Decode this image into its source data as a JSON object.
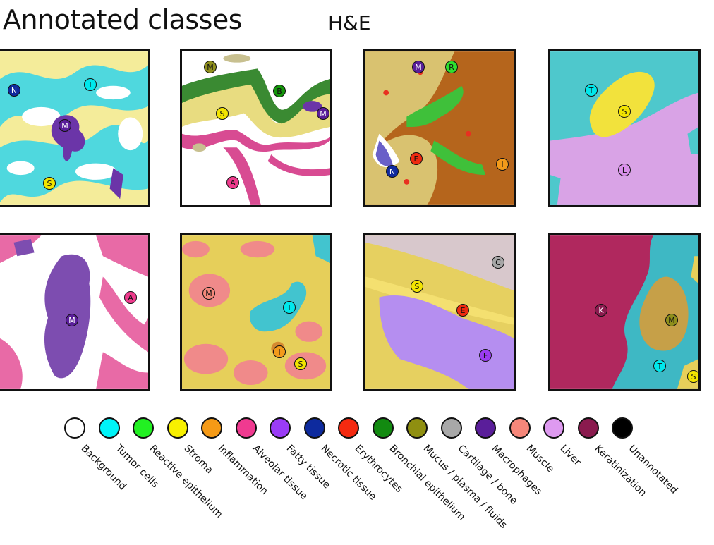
{
  "header": {
    "title": "Annotated classes",
    "stain": "H&E"
  },
  "panels": [
    {
      "markers": [
        {
          "letter": "T",
          "color": "#00e8ec"
        },
        {
          "letter": "N",
          "color": "#102a9e"
        },
        {
          "letter": "M",
          "color": "#5a1e9a"
        },
        {
          "letter": "S",
          "color": "#f2e400"
        }
      ]
    },
    {
      "markers": [
        {
          "letter": "M",
          "color": "#8f8f1c"
        },
        {
          "letter": "B",
          "color": "#14960a"
        },
        {
          "letter": "S",
          "color": "#f2e400"
        },
        {
          "letter": "M",
          "color": "#5a1e9a"
        },
        {
          "letter": "A",
          "color": "#ee3a8c"
        }
      ]
    },
    {
      "markers": [
        {
          "letter": "M",
          "color": "#5a1e9a"
        },
        {
          "letter": "R",
          "color": "#2ee02e"
        },
        {
          "letter": "E",
          "color": "#ee2a10"
        },
        {
          "letter": "N",
          "color": "#102a9e"
        },
        {
          "letter": "I",
          "color": "#f39a1a"
        }
      ]
    },
    {
      "markers": [
        {
          "letter": "T",
          "color": "#00e8ec"
        },
        {
          "letter": "S",
          "color": "#f2e400"
        },
        {
          "letter": "L",
          "color": "#d990ea"
        }
      ]
    },
    {
      "markers": [
        {
          "letter": "A",
          "color": "#ee3a8c"
        },
        {
          "letter": "M",
          "color": "#5a1e9a"
        }
      ]
    },
    {
      "markers": [
        {
          "letter": "M",
          "color": "#f3877a"
        },
        {
          "letter": "T",
          "color": "#00e8ec"
        },
        {
          "letter": "I",
          "color": "#f39a1a"
        },
        {
          "letter": "S",
          "color": "#f2e400"
        }
      ]
    },
    {
      "markers": [
        {
          "letter": "C",
          "color": "#a6a6a6"
        },
        {
          "letter": "S",
          "color": "#f2e400"
        },
        {
          "letter": "E",
          "color": "#ee2a10"
        },
        {
          "letter": "F",
          "color": "#9a3cf0"
        }
      ]
    },
    {
      "markers": [
        {
          "letter": "K",
          "color": "#8a1a4e"
        },
        {
          "letter": "M",
          "color": "#8f8f1c"
        },
        {
          "letter": "T",
          "color": "#00e8ec"
        },
        {
          "letter": "S",
          "color": "#f2e400"
        }
      ]
    }
  ],
  "legend": [
    {
      "label": "Background",
      "color": "#ffffff"
    },
    {
      "label": "Tumor cells",
      "color": "#00f4f8"
    },
    {
      "label": "Reactive epithelium",
      "color": "#22f022"
    },
    {
      "label": "Stroma",
      "color": "#f8f000"
    },
    {
      "label": "Inflammation",
      "color": "#f59a16"
    },
    {
      "label": "Alveolar tissue",
      "color": "#f03a90"
    },
    {
      "label": "Fatty tissue",
      "color": "#9a3cf6"
    },
    {
      "label": "Necrotic tissue",
      "color": "#0d2a9e"
    },
    {
      "label": "Erythrocytes",
      "color": "#f52a10"
    },
    {
      "label": "Bronchial epithelium",
      "color": "#128a10"
    },
    {
      "label": "Mucus / plasma / fluids",
      "color": "#8f8f10"
    },
    {
      "label": "Cartilage / bone",
      "color": "#a8a8a8"
    },
    {
      "label": "Macrophages",
      "color": "#5a1e9a"
    },
    {
      "label": "Muscle",
      "color": "#f6877a"
    },
    {
      "label": "Liver",
      "color": "#de9af0"
    },
    {
      "label": "Keratinization",
      "color": "#8a1a4e"
    },
    {
      "label": "Unannotated",
      "color": "#000000"
    }
  ]
}
